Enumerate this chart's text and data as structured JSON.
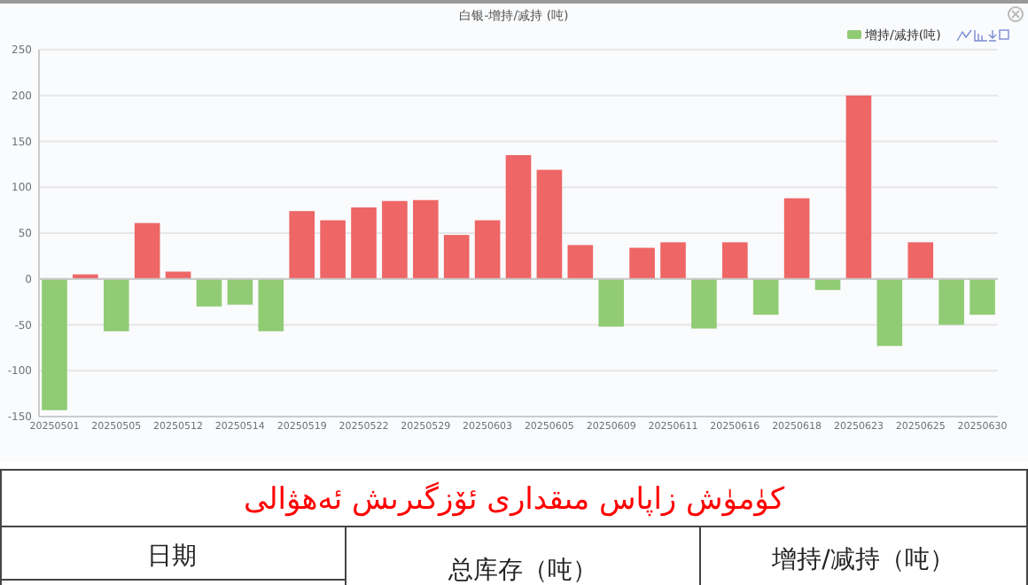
{
  "chart_data": {
    "type": "bar",
    "title": "白银-增持/减持 (吨)",
    "categories": [
      "20250501",
      null,
      "20250505",
      null,
      "20250512",
      null,
      "20250514",
      null,
      "20250519",
      null,
      "20250522",
      null,
      "20250529",
      null,
      "20250603",
      null,
      "20250605",
      null,
      "20250609",
      null,
      "20250611",
      null,
      "20250616",
      null,
      "20250618",
      null,
      "20250623",
      null,
      "20250625",
      null,
      "20250630"
    ],
    "series": [
      {
        "name": "增持/减持(吨)",
        "color": "#91cc75",
        "values": [
          -143,
          5,
          -57,
          61,
          8,
          -30,
          -28,
          -57,
          74,
          64,
          78,
          85,
          86,
          48,
          64,
          135,
          119,
          37,
          -52,
          34,
          40,
          -54,
          40,
          -39,
          88,
          -12,
          200,
          -73,
          40,
          -50,
          -39
        ],
        "colors": [
          "#91cc75",
          "#ee6666",
          "#91cc75",
          "#ee6666",
          "#ee6666",
          "#91cc75",
          "#91cc75",
          "#91cc75",
          "#ee6666",
          "#ee6666",
          "#ee6666",
          "#ee6666",
          "#ee6666",
          "#ee6666",
          "#ee6666",
          "#ee6666",
          "#ee6666",
          "#ee6666",
          "#91cc75",
          "#ee6666",
          "#ee6666",
          "#91cc75",
          "#ee6666",
          "#91cc75",
          "#ee6666",
          "#91cc75",
          "#ee6666",
          "#91cc75",
          "#ee6666",
          "#91cc75",
          "#91cc75"
        ]
      }
    ],
    "ylim": [
      -150,
      250
    ],
    "yticks": [
      -150,
      -100,
      -50,
      0,
      50,
      100,
      150,
      200,
      250
    ],
    "grid": "y",
    "legend": "top right",
    "annotations": [
      "كۈمۈش زاپاس مىقدارى ئۆزگىرىش ئەھۋالى",
      "日期",
      "总库存（吨）",
      "增持/减持（吨）"
    ]
  }
}
